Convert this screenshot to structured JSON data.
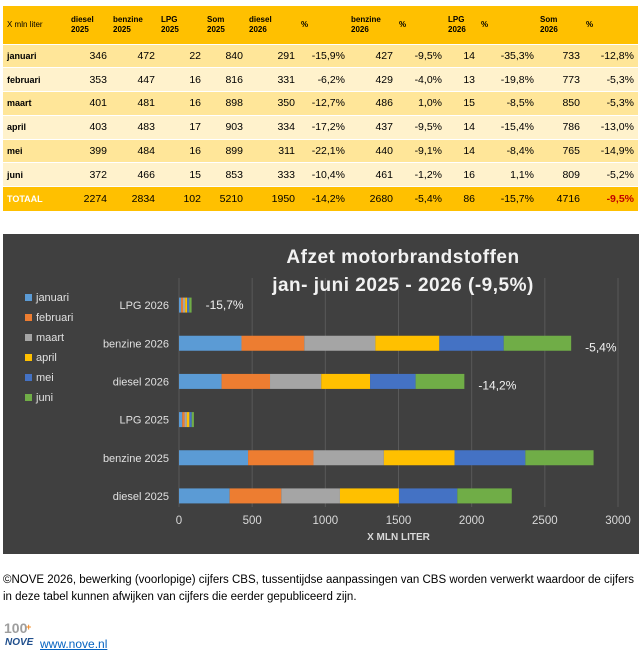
{
  "table": {
    "unit_label": "X mln liter",
    "headers": [
      "diesel\n2025",
      "benzine\n2025",
      "LPG\n2025",
      "Som\n2025",
      "diesel\n2026",
      "%",
      "benzine\n2026",
      "%",
      "LPG\n2026",
      "%",
      "Som\n2026",
      "%"
    ],
    "rows": [
      {
        "month": "januari",
        "cells": [
          "346",
          "472",
          "22",
          "840",
          "291",
          "-15,9%",
          "427",
          "-9,5%",
          "14",
          "-35,3%",
          "733",
          "-12,8%"
        ]
      },
      {
        "month": "februari",
        "cells": [
          "353",
          "447",
          "16",
          "816",
          "331",
          "-6,2%",
          "429",
          "-4,0%",
          "13",
          "-19,8%",
          "773",
          "-5,3%"
        ]
      },
      {
        "month": "maart",
        "cells": [
          "401",
          "481",
          "16",
          "898",
          "350",
          "-12,7%",
          "486",
          "1,0%",
          "15",
          "-8,5%",
          "850",
          "-5,3%"
        ]
      },
      {
        "month": "april",
        "cells": [
          "403",
          "483",
          "17",
          "903",
          "334",
          "-17,2%",
          "437",
          "-9,5%",
          "14",
          "-15,4%",
          "786",
          "-13,0%"
        ]
      },
      {
        "month": "mei",
        "cells": [
          "399",
          "484",
          "16",
          "899",
          "311",
          "-22,1%",
          "440",
          "-9,1%",
          "14",
          "-8,4%",
          "765",
          "-14,9%"
        ]
      },
      {
        "month": "juni",
        "cells": [
          "372",
          "466",
          "15",
          "853",
          "333",
          "-10,4%",
          "461",
          "-1,2%",
          "16",
          "1,1%",
          "809",
          "-5,2%"
        ]
      }
    ],
    "total": {
      "month": "TOTAAL",
      "cells": [
        "2274",
        "2834",
        "102",
        "5210",
        "1950",
        "-14,2%",
        "2680",
        "-5,4%",
        "86",
        "-15,7%",
        "4716",
        "-9,5%"
      ]
    },
    "highlight_color": "#c00000"
  },
  "chart_data": {
    "type": "bar",
    "orientation": "horizontal",
    "stacked": true,
    "title_line1": "Afzet motorbrandstoffen",
    "title_line2": "jan- juni 2025 - 2026 (-9,5%)",
    "xlabel": "X MLN LITER",
    "xlim": [
      0,
      3000
    ],
    "xticks": [
      0,
      500,
      1000,
      1500,
      2000,
      2500,
      3000
    ],
    "categories": [
      "LPG 2026",
      "benzine 2026",
      "diesel 2026",
      "LPG 2025",
      "benzine 2025",
      "diesel 2025"
    ],
    "series": [
      {
        "name": "januari",
        "color": "#5b9bd5",
        "values": [
          14,
          427,
          291,
          22,
          472,
          346
        ]
      },
      {
        "name": "februari",
        "color": "#ed7d31",
        "values": [
          13,
          429,
          331,
          16,
          447,
          353
        ]
      },
      {
        "name": "maart",
        "color": "#a5a5a5",
        "values": [
          15,
          486,
          350,
          16,
          481,
          401
        ]
      },
      {
        "name": "april",
        "color": "#ffc000",
        "values": [
          14,
          437,
          334,
          17,
          483,
          403
        ]
      },
      {
        "name": "mei",
        "color": "#4472c4",
        "values": [
          14,
          440,
          311,
          16,
          484,
          399
        ]
      },
      {
        "name": "juni",
        "color": "#70ad47",
        "values": [
          16,
          461,
          333,
          15,
          466,
          372
        ]
      }
    ],
    "annotations": [
      {
        "category": "LPG 2026",
        "text": "-15,7%"
      },
      {
        "category": "benzine 2026",
        "text": "-5,4%"
      },
      {
        "category": "diesel 2026",
        "text": "-14,2%"
      }
    ],
    "legend_position": "left",
    "background": "#404040",
    "grid": true
  },
  "footer": {
    "note": "©NOVE 2026, bewerking (voorlopige) cijfers CBS, tussentijdse aanpassingen van CBS worden verwerkt waardoor de cijfers in deze tabel kunnen afwijken van cijfers die eerder gepubliceerd zijn.",
    "logo_text": "100",
    "logo_subtext": "NOVE",
    "website": "www.nove.nl"
  }
}
